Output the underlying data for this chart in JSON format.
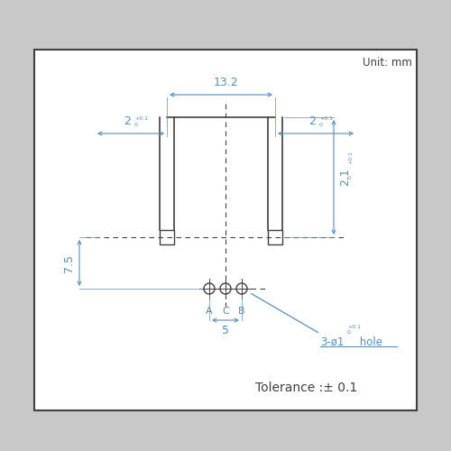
{
  "fig_width": 5.0,
  "fig_height": 5.0,
  "dpi": 100,
  "bg_color": "#c8c8c8",
  "box_facecolor": "#ffffff",
  "box_edgecolor": "#404040",
  "line_color": "#404040",
  "dim_color": "#5b8db8",
  "text_color": "#404040",
  "unit_text": "Unit: mm",
  "tolerance_text": "Tolerance :± 0.1",
  "dim_13p2": "13.2",
  "dim_2": "2",
  "dim_2p1": "2.1",
  "dim_7p5": "7.5",
  "dim_5": "5",
  "labels_ACB": [
    "A",
    "C",
    "B"
  ]
}
